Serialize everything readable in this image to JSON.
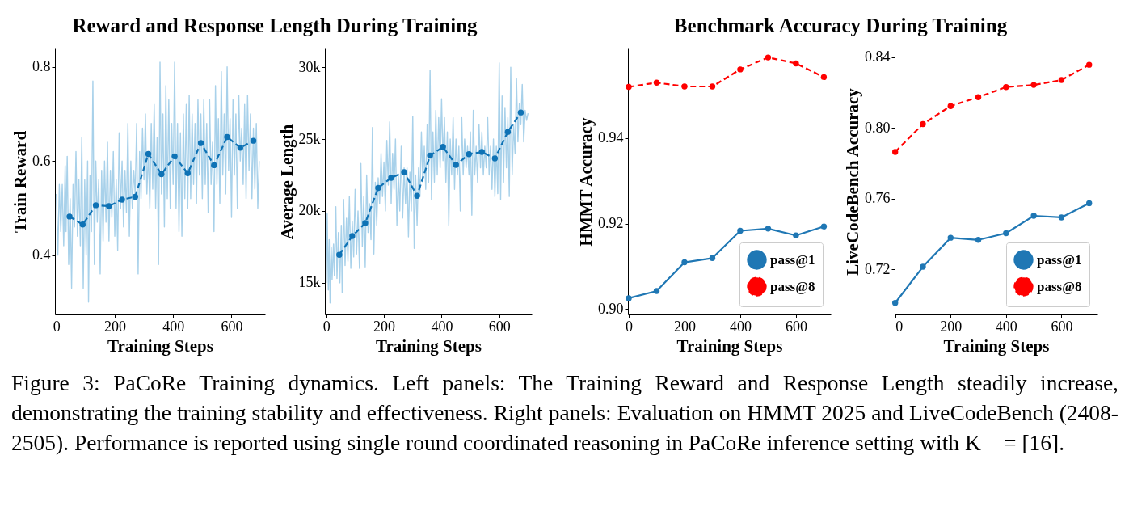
{
  "chart_data": [
    {
      "type": "line",
      "title": "Reward and Response Length During Training",
      "xlabel": "Training Steps",
      "ylabel": "Train Reward",
      "xlim": [
        -5,
        715
      ],
      "ylim": [
        0.274,
        0.839
      ],
      "xticks": [
        0,
        200,
        400,
        600
      ],
      "yticks": [
        0.4,
        0.6,
        0.8
      ],
      "grid": false,
      "legend": false,
      "series": [
        {
          "color": "#a8d1ea",
          "line_style": "solid",
          "marker": "none",
          "x": [
            0,
            5,
            10,
            15,
            20,
            25,
            30,
            33,
            37,
            42,
            47,
            52,
            57,
            62,
            67,
            72,
            77,
            82,
            87,
            92,
            97,
            102,
            107,
            110,
            115,
            120,
            125,
            130,
            135,
            140,
            145,
            150,
            155,
            160,
            165,
            170,
            175,
            180,
            185,
            190,
            195,
            200,
            205,
            210,
            215,
            220,
            225,
            230,
            235,
            240,
            245,
            250,
            255,
            260,
            265,
            270,
            275,
            280,
            285,
            290,
            295,
            300,
            305,
            310,
            315,
            320,
            325,
            330,
            335,
            340,
            345,
            350,
            355,
            360,
            365,
            370,
            375,
            380,
            385,
            390,
            395,
            400,
            405,
            410,
            415,
            420,
            425,
            430,
            435,
            440,
            445,
            450,
            455,
            460,
            465,
            470,
            475,
            480,
            485,
            490,
            495,
            500,
            505,
            510,
            515,
            520,
            525,
            530,
            535,
            540,
            545,
            550,
            555,
            560,
            565,
            570,
            575,
            580,
            585,
            590,
            595,
            600,
            605,
            610,
            615,
            620,
            625,
            630,
            635,
            640,
            645,
            650,
            655,
            660,
            665,
            670,
            675,
            680,
            685,
            690,
            695
          ],
          "values": [
            0.53,
            0.4,
            0.55,
            0.45,
            0.55,
            0.42,
            0.59,
            0.45,
            0.61,
            0.38,
            0.52,
            0.33,
            0.55,
            0.46,
            0.62,
            0.44,
            0.56,
            0.42,
            0.65,
            0.33,
            0.56,
            0.4,
            0.6,
            0.3,
            0.57,
            0.45,
            0.77,
            0.38,
            0.6,
            0.47,
            0.56,
            0.36,
            0.58,
            0.43,
            0.6,
            0.47,
            0.64,
            0.43,
            0.58,
            0.48,
            0.62,
            0.44,
            0.56,
            0.41,
            0.66,
            0.5,
            0.6,
            0.46,
            0.58,
            0.49,
            0.68,
            0.44,
            0.6,
            0.5,
            0.58,
            0.53,
            0.68,
            0.36,
            0.62,
            0.52,
            0.67,
            0.56,
            0.7,
            0.53,
            0.62,
            0.5,
            0.68,
            0.54,
            0.72,
            0.5,
            0.65,
            0.38,
            0.81,
            0.53,
            0.7,
            0.46,
            0.76,
            0.52,
            0.73,
            0.5,
            0.68,
            0.55,
            0.81,
            0.5,
            0.68,
            0.45,
            0.66,
            0.44,
            0.7,
            0.52,
            0.72,
            0.5,
            0.74,
            0.52,
            0.7,
            0.55,
            0.68,
            0.51,
            0.73,
            0.57,
            0.7,
            0.52,
            0.73,
            0.55,
            0.68,
            0.49,
            0.73,
            0.55,
            0.64,
            0.45,
            0.76,
            0.55,
            0.69,
            0.51,
            0.79,
            0.57,
            0.7,
            0.53,
            0.8,
            0.58,
            0.69,
            0.48,
            0.73,
            0.57,
            0.7,
            0.5,
            0.74,
            0.6,
            0.67,
            0.55,
            0.72,
            0.52,
            0.74,
            0.58,
            0.7,
            0.52,
            0.67,
            0.54,
            0.68,
            0.5,
            0.6
          ]
        },
        {
          "color": "#0e72b5",
          "line_style": "dashed",
          "marker": "circle",
          "x": [
            45,
            90,
            135,
            180,
            225,
            270,
            315,
            360,
            405,
            450,
            495,
            540,
            585,
            630,
            675
          ],
          "values": [
            0.482,
            0.465,
            0.506,
            0.504,
            0.518,
            0.524,
            0.615,
            0.572,
            0.61,
            0.574,
            0.638,
            0.591,
            0.651,
            0.628,
            0.643
          ]
        }
      ]
    },
    {
      "type": "line",
      "xlabel": "Training Steps",
      "ylabel": "Average Length",
      "xlim": [
        -5,
        713
      ],
      "ylim": [
        12800,
        31300
      ],
      "xticks": [
        0,
        200,
        400,
        600
      ],
      "yticks": [
        {
          "value": 15000,
          "label": "15k"
        },
        {
          "value": 20000,
          "label": "20k"
        },
        {
          "value": 25000,
          "label": "25k"
        },
        {
          "value": 30000,
          "label": "30k"
        }
      ],
      "grid": false,
      "legend": false,
      "series": [
        {
          "color": "#a8d1ea",
          "line_style": "solid",
          "marker": "none",
          "x": [
            0,
            3,
            7,
            10,
            13,
            17,
            20,
            25,
            28,
            33,
            37,
            42,
            47,
            52,
            55,
            60,
            65,
            70,
            75,
            80,
            85,
            90,
            95,
            100,
            105,
            110,
            115,
            120,
            125,
            130,
            135,
            140,
            145,
            150,
            155,
            160,
            165,
            170,
            175,
            180,
            185,
            190,
            195,
            200,
            205,
            210,
            215,
            220,
            225,
            230,
            235,
            240,
            245,
            250,
            255,
            260,
            265,
            270,
            275,
            280,
            285,
            290,
            295,
            300,
            305,
            310,
            315,
            320,
            325,
            330,
            335,
            340,
            345,
            350,
            355,
            360,
            365,
            370,
            375,
            380,
            385,
            390,
            395,
            400,
            405,
            410,
            415,
            420,
            425,
            430,
            435,
            440,
            445,
            450,
            455,
            460,
            465,
            470,
            475,
            480,
            485,
            490,
            495,
            500,
            505,
            510,
            515,
            520,
            525,
            530,
            535,
            540,
            545,
            550,
            555,
            560,
            565,
            570,
            575,
            580,
            585,
            590,
            595,
            600,
            605,
            610,
            615,
            620,
            625,
            630,
            635,
            640,
            645,
            650,
            655,
            660,
            665,
            670,
            675,
            680,
            685,
            690,
            695,
            700
          ],
          "values": [
            15000,
            19800,
            14500,
            18000,
            13600,
            17500,
            15200,
            17700,
            15500,
            20300,
            15300,
            18500,
            15000,
            19000,
            14300,
            20800,
            16200,
            19500,
            16500,
            21000,
            16000,
            19300,
            16800,
            21500,
            17000,
            20000,
            16000,
            23300,
            17500,
            21000,
            16100,
            22500,
            18500,
            20500,
            18000,
            25800,
            17000,
            22000,
            19000,
            22300,
            20500,
            24000,
            21000,
            23400,
            20000,
            24900,
            21800,
            26200,
            20500,
            24000,
            21500,
            25000,
            19000,
            22500,
            20000,
            24500,
            19500,
            23000,
            20500,
            23000,
            18200,
            22700,
            20000,
            26600,
            17400,
            22500,
            19000,
            23000,
            21000,
            25500,
            22000,
            24500,
            21500,
            26000,
            22000,
            29800,
            20800,
            25500,
            22000,
            27000,
            22500,
            26500,
            23000,
            27800,
            23500,
            26500,
            22000,
            25500,
            19000,
            25000,
            22500,
            26500,
            21500,
            25000,
            22500,
            24500,
            20000,
            26500,
            22500,
            25000,
            23000,
            24500,
            22500,
            25500,
            19700,
            27000,
            22500,
            24500,
            22000,
            26000,
            23000,
            25500,
            22500,
            24500,
            23000,
            26500,
            22500,
            24500,
            21500,
            25000,
            21000,
            24500,
            21200,
            30300,
            20800,
            28000,
            22000,
            27200,
            23000,
            26500,
            21000,
            30000,
            22500,
            26000,
            24000,
            29200,
            24800,
            27500,
            26000,
            28800,
            24800,
            27000,
            26300,
            26800
          ]
        },
        {
          "color": "#0e72b5",
          "line_style": "dashed",
          "marker": "circle",
          "x": [
            45,
            90,
            135,
            180,
            225,
            270,
            315,
            360,
            405,
            450,
            495,
            540,
            585,
            630,
            675
          ],
          "values": [
            16950,
            18250,
            19150,
            21600,
            22300,
            22700,
            21050,
            23850,
            24450,
            23200,
            23950,
            24100,
            23650,
            25500,
            26850
          ]
        }
      ]
    },
    {
      "type": "line",
      "title": "Benchmark Accuracy During Training",
      "xlabel": "Training Steps",
      "ylabel": "HMMT Accuracy",
      "xlim": [
        -3,
        725
      ],
      "ylim": [
        0.8987,
        0.961
      ],
      "xticks": [
        0,
        200,
        400,
        600
      ],
      "yticks": [
        {
          "value": 0.9,
          "label": "0.90"
        },
        0.92,
        0.94
      ],
      "grid": false,
      "legend": "bottom right",
      "series": [
        {
          "name": "pass@1",
          "color": "#1f77b4",
          "line_style": "solid",
          "marker": "circle",
          "x": [
            0,
            100,
            200,
            300,
            400,
            500,
            600,
            700
          ],
          "values": [
            0.9025,
            0.9042,
            0.9109,
            0.9119,
            0.9183,
            0.9188,
            0.9172,
            0.9193
          ]
        },
        {
          "name": "pass@8",
          "color": "#ff0000",
          "line_style": "dashed",
          "marker": "circle",
          "x": [
            0,
            100,
            200,
            300,
            400,
            500,
            600,
            700
          ],
          "values": [
            0.952,
            0.953,
            0.9521,
            0.9521,
            0.9561,
            0.9589,
            0.9575,
            0.9543
          ]
        }
      ]
    },
    {
      "type": "line",
      "xlabel": "Training Steps",
      "ylabel": "LiveCodeBench Accuracy",
      "xlim": [
        -2,
        730
      ],
      "ylim": [
        0.6946,
        0.8448
      ],
      "xticks": [
        0,
        200,
        400,
        600
      ],
      "yticks": [
        0.72,
        0.76,
        {
          "value": 0.8,
          "label": "0.80"
        },
        0.84
      ],
      "grid": false,
      "legend": "bottom right",
      "annotations": [
        "Figure 3: PaCoRe Training dynamics. Left panels: The Training Reward and Response Length steadily increase, demonstrating the training stability and effectiveness. Right panels: Evaluation on HMMT 2025 and LiveCodeBench (2408-2505). Performance is reported using single round coordinated reasoning in PaCoRe inference setting with K⃗ = [16]."
      ],
      "series": [
        {
          "name": "pass@1",
          "color": "#1f77b4",
          "line_style": "solid",
          "marker": "circle",
          "x": [
            0,
            100,
            200,
            300,
            400,
            500,
            600,
            700
          ],
          "values": [
            0.7011,
            0.7215,
            0.7379,
            0.7367,
            0.7405,
            0.7503,
            0.7494,
            0.7574
          ]
        },
        {
          "name": "pass@8",
          "color": "#ff0000",
          "line_style": "dashed",
          "marker": "circle",
          "x": [
            0,
            100,
            200,
            300,
            400,
            500,
            600,
            700
          ],
          "values": [
            0.7864,
            0.8021,
            0.8123,
            0.8173,
            0.823,
            0.8242,
            0.827,
            0.8356
          ]
        }
      ]
    }
  ]
}
